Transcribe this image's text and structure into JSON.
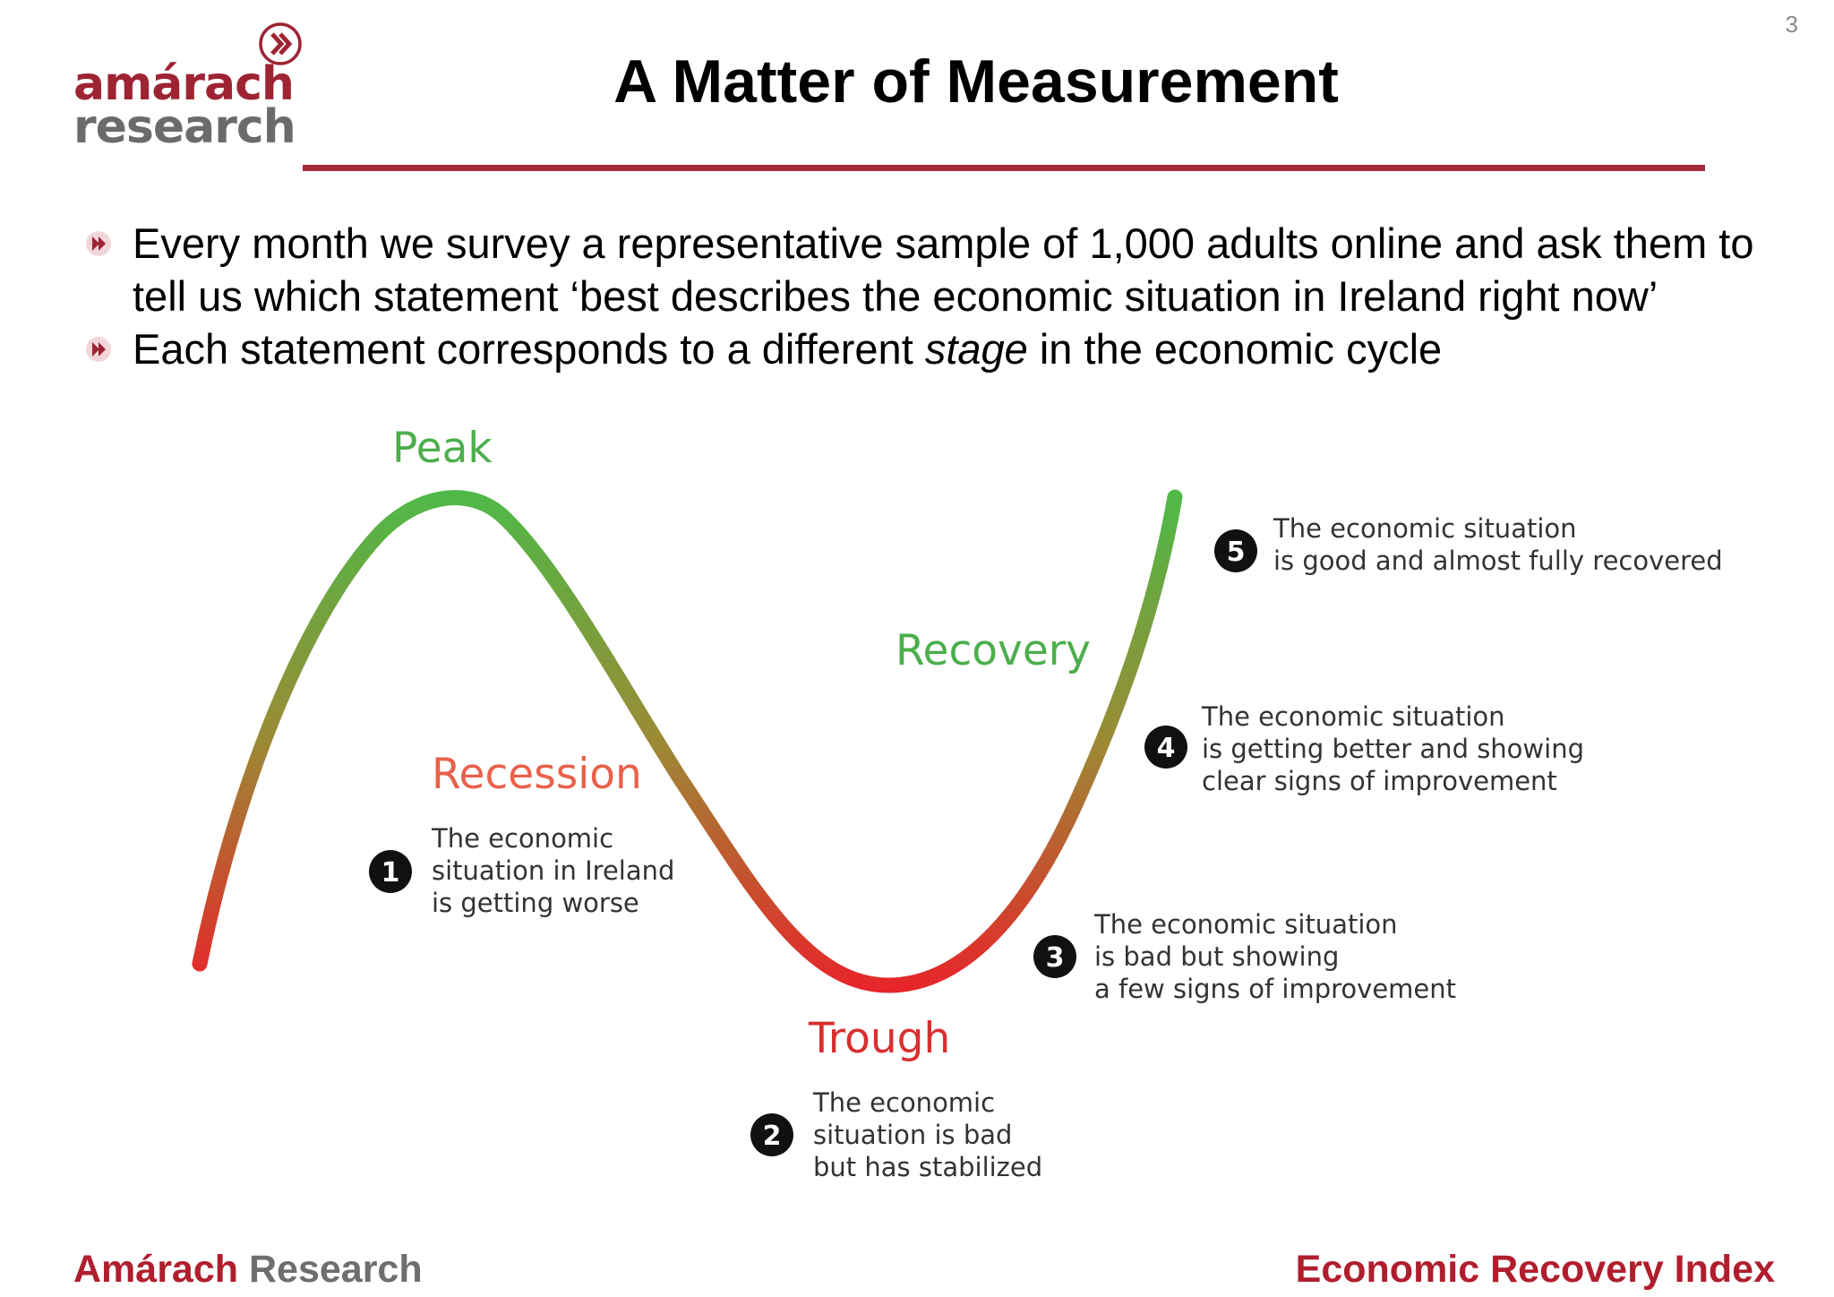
{
  "page_number": "3",
  "logo": {
    "line1": "amárach",
    "line2": "research",
    "icon": "chevron-circle-icon"
  },
  "title": "A Matter of Measurement",
  "bullets": [
    {
      "icon": "chevron-bullet-icon",
      "pre": "Every month we survey a representative sample of 1,000 adults online and ask them to tell us which statement ‘best describes the economic situation in Ireland right now’",
      "emph": "",
      "post": ""
    },
    {
      "icon": "chevron-bullet-icon",
      "pre": "Each statement corresponds to a different ",
      "emph": "stage",
      "post": " in the economic cycle"
    }
  ],
  "cycle": {
    "stages": [
      {
        "label": "Peak",
        "color": "#4cae4c"
      },
      {
        "label": "Recession",
        "color": "#e8614a"
      },
      {
        "label": "Trough",
        "color": "#d92f2f"
      },
      {
        "label": "Recovery",
        "color": "#4cae4c"
      }
    ],
    "statements": [
      {
        "number": "1",
        "lines": [
          "The economic",
          "situation in Ireland",
          "is getting worse"
        ]
      },
      {
        "number": "2",
        "lines": [
          "The economic",
          "situation is bad",
          "but has stabilized"
        ]
      },
      {
        "number": "3",
        "lines": [
          "The economic situation",
          "is bad but showing",
          "a few signs of improvement"
        ]
      },
      {
        "number": "4",
        "lines": [
          "The economic situation",
          "is getting better and showing",
          "clear signs of improvement"
        ]
      },
      {
        "number": "5",
        "lines": [
          "The economic situation",
          "is good and almost fully recovered"
        ]
      }
    ],
    "curve_colors": {
      "low": "#e8232a",
      "mid": "#9b8a35",
      "high": "#4dba48"
    }
  },
  "footer": {
    "brand": "Amárach",
    "brand_rest": " Research",
    "right": "Economic Recovery Index"
  }
}
